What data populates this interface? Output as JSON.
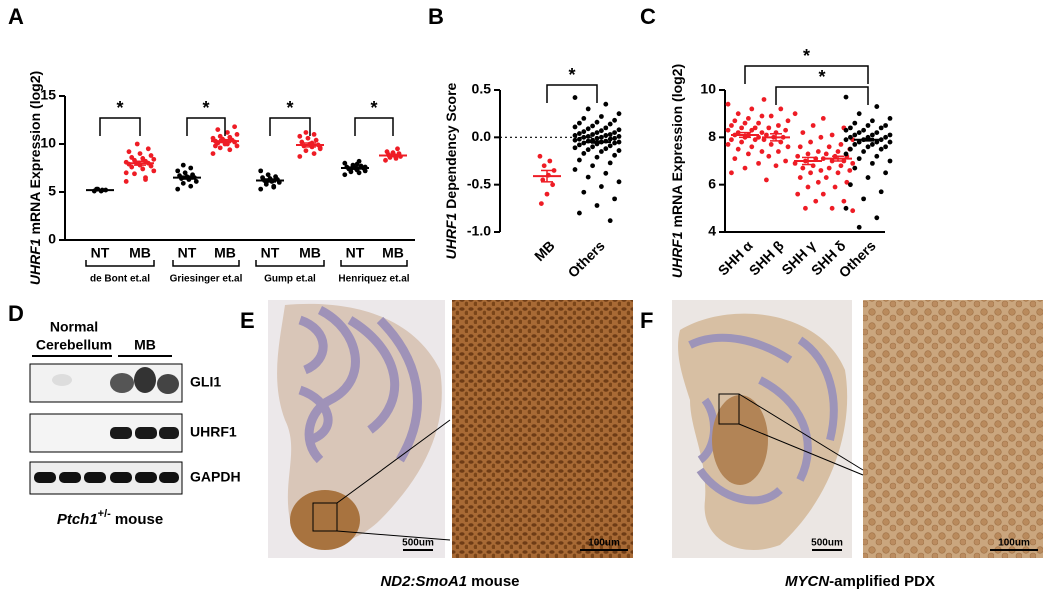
{
  "panel_labels": [
    "A",
    "B",
    "C",
    "D",
    "E",
    "F"
  ],
  "chart_data": [
    {
      "type": "dotplot",
      "ylabel_gene": "UHRF1",
      "ylabel": "mRNA Expression (log2)",
      "categories": [
        "NT",
        "MB",
        "NT",
        "MB",
        "NT",
        "MB",
        "NT",
        "MB"
      ],
      "groups": [
        "de Bont et.al",
        "Griesinger et.al",
        "Gump et.al",
        "Henriquez et.al"
      ],
      "colors": [
        "#000000",
        "#ee1c25",
        "#000000",
        "#ee1c25",
        "#000000",
        "#ee1c25",
        "#000000",
        "#ee1c25"
      ],
      "points": [
        [
          5.1,
          5.2,
          5.3,
          5.2,
          5.1,
          5.3
        ],
        [
          6.1,
          6.5,
          6.9,
          7.2,
          7.4,
          7.6,
          7.7,
          7.8,
          7.9,
          8.0,
          8.0,
          8.1,
          8.2,
          8.3,
          8.4,
          8.5,
          8.6,
          8.8,
          9.0,
          9.2,
          9.5,
          10.0,
          7.0,
          6.3
        ],
        [
          5.3,
          5.6,
          5.9,
          6.1,
          6.3,
          6.4,
          6.5,
          6.6,
          6.7,
          6.8,
          7.0,
          7.2,
          7.5,
          7.8
        ],
        [
          9.0,
          9.4,
          9.6,
          9.8,
          10.0,
          10.1,
          10.2,
          10.3,
          10.3,
          10.4,
          10.5,
          10.6,
          10.7,
          10.8,
          11.0,
          11.2,
          11.5,
          11.8,
          10.0,
          9.8
        ],
        [
          5.3,
          5.5,
          5.8,
          6.0,
          6.1,
          6.2,
          6.3,
          6.4,
          6.5,
          6.6,
          6.8,
          7.2,
          5.6,
          6.0
        ],
        [
          8.7,
          9.0,
          9.3,
          9.5,
          9.7,
          9.8,
          9.9,
          10.0,
          10.2,
          10.4,
          10.6,
          10.8,
          11.0,
          11.2,
          9.6,
          10.1
        ],
        [
          6.8,
          7.0,
          7.1,
          7.2,
          7.3,
          7.4,
          7.5,
          7.5,
          7.6,
          7.7,
          7.8,
          8.0,
          8.2,
          7.4,
          7.6,
          7.9
        ],
        [
          8.3,
          8.5,
          8.6,
          8.7,
          8.8,
          8.9,
          9.0,
          9.1,
          9.2,
          9.5
        ]
      ],
      "means": [
        5.2,
        8.0,
        6.5,
        10.3,
        6.2,
        9.9,
        7.5,
        8.8
      ],
      "errors": [
        0.05,
        0.2,
        0.15,
        0.15,
        0.15,
        0.2,
        0.1,
        0.1
      ],
      "significance": [
        "*",
        "*",
        "*",
        "*"
      ],
      "ylim": [
        0,
        15
      ],
      "yticks": [
        0,
        5,
        10,
        15
      ]
    },
    {
      "type": "dotplot",
      "ylabel_gene": "UHRF1",
      "ylabel": "Dependency Score",
      "categories": [
        "MB",
        "Others"
      ],
      "colors": [
        "#ee1c25",
        "#000000"
      ],
      "points": [
        [
          -0.2,
          -0.25,
          -0.3,
          -0.35,
          -0.4,
          -0.45,
          -0.5,
          -0.6,
          -0.7
        ],
        [
          0.42,
          0.35,
          0.3,
          0.25,
          0.22,
          0.2,
          0.18,
          0.16,
          0.15,
          0.14,
          0.12,
          0.11,
          0.1,
          0.09,
          0.08,
          0.07,
          0.06,
          0.05,
          0.05,
          0.04,
          0.03,
          0.03,
          0.02,
          0.02,
          0.01,
          0.01,
          0,
          0,
          -0.01,
          -0.01,
          -0.02,
          -0.02,
          -0.03,
          -0.03,
          -0.04,
          -0.04,
          -0.05,
          -0.05,
          -0.06,
          -0.06,
          -0.07,
          -0.08,
          -0.09,
          -0.1,
          -0.11,
          -0.12,
          -0.13,
          -0.14,
          -0.15,
          -0.17,
          -0.19,
          -0.21,
          -0.24,
          -0.27,
          -0.3,
          -0.34,
          -0.38,
          -0.42,
          -0.47,
          -0.52,
          -0.58,
          -0.65,
          -0.72,
          -0.8,
          -0.88
        ]
      ],
      "means": [
        -0.41,
        -0.05
      ],
      "errors": [
        0.06,
        0.01
      ],
      "significance": [
        "*"
      ],
      "refline": 0,
      "ylim": [
        -1,
        0.5
      ],
      "yticks": [
        {
          "value": -1,
          "label": "-1.0"
        },
        -0.5,
        {
          "value": 0,
          "label": "0.0"
        },
        0.5
      ]
    },
    {
      "type": "dotplot",
      "ylabel_gene": "UHRF1",
      "ylabel": "mRNA Expression (log2)",
      "categories": [
        "SHH α",
        "SHH β",
        "SHH γ",
        "SHH δ",
        "Others"
      ],
      "colors": [
        "#ee1c25",
        "#ee1c25",
        "#ee1c25",
        "#ee1c25",
        "#000000"
      ],
      "points": [
        [
          9.4,
          9.2,
          9.0,
          8.9,
          8.8,
          8.7,
          8.6,
          8.6,
          8.5,
          8.4,
          8.4,
          8.3,
          8.3,
          8.2,
          8.2,
          8.1,
          8.1,
          8.0,
          8.0,
          7.9,
          7.9,
          7.8,
          7.7,
          7.6,
          7.5,
          7.4,
          7.3,
          7.1,
          6.9,
          6.7,
          6.5
        ],
        [
          9.6,
          9.2,
          8.9,
          8.7,
          8.5,
          8.4,
          8.3,
          8.2,
          8.1,
          8.0,
          8.0,
          7.9,
          7.8,
          7.7,
          7.6,
          7.4,
          7.2,
          7.0,
          6.8,
          6.2
        ],
        [
          9.0,
          8.5,
          8.2,
          8.0,
          7.8,
          7.6,
          7.4,
          7.3,
          7.2,
          7.1,
          7.0,
          6.9,
          6.8,
          6.7,
          6.6,
          6.5,
          6.3,
          6.1,
          5.9,
          5.6,
          5.3,
          5.0
        ],
        [
          8.8,
          8.4,
          8.1,
          7.9,
          7.7,
          7.6,
          7.5,
          7.4,
          7.3,
          7.2,
          7.2,
          7.1,
          7.0,
          7.0,
          6.9,
          6.8,
          6.7,
          6.6,
          6.5,
          6.3,
          6.1,
          5.9,
          5.6,
          5.3,
          5.0,
          4.9
        ],
        [
          9.7,
          9.3,
          9.0,
          8.8,
          8.7,
          8.6,
          8.5,
          8.5,
          8.4,
          8.4,
          8.3,
          8.3,
          8.2,
          8.2,
          8.1,
          8.1,
          8.1,
          8.0,
          8.0,
          8.0,
          7.9,
          7.9,
          7.9,
          7.8,
          7.8,
          7.8,
          7.7,
          7.7,
          7.6,
          7.6,
          7.5,
          7.5,
          7.4,
          7.3,
          7.2,
          7.1,
          7.0,
          6.9,
          6.7,
          6.5,
          6.3,
          6.0,
          5.7,
          5.4,
          5.0,
          4.6,
          4.2
        ]
      ],
      "means": [
        8.1,
        8.0,
        7.0,
        7.1,
        7.9
      ],
      "errors": [
        0.1,
        0.15,
        0.15,
        0.1,
        0.05
      ],
      "significance": [
        "*",
        "*"
      ],
      "ylim": [
        4,
        10
      ],
      "yticks": [
        4,
        6,
        8,
        10
      ]
    }
  ],
  "blot": {
    "header": [
      "Normal",
      "Cerebellum",
      "MB"
    ],
    "rows": [
      "GLI1",
      "UHRF1",
      "GAPDH"
    ],
    "caption_gene": "Ptch1",
    "caption_sup": "+/-",
    "caption_rest": "mouse"
  },
  "histology": [
    {
      "scale_bars": [
        "500um",
        "100um"
      ],
      "caption_italic": "ND2:SmoA1",
      "caption_rest": "mouse"
    },
    {
      "scale_bars": [
        "500um",
        "100um"
      ],
      "caption_italic": "MYCN",
      "caption_rest": "-amplified PDX"
    }
  ]
}
